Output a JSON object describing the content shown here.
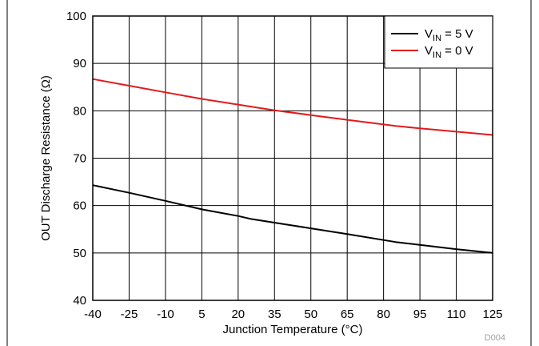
{
  "chart_data": {
    "type": "line",
    "title": "",
    "xlabel": "Junction Temperature (°C)",
    "ylabel": "OUT Discharge Resistance (Ω)",
    "xlim": [
      -40,
      125
    ],
    "ylim": [
      40,
      100
    ],
    "x_ticks": [
      -40,
      -25,
      -10,
      5,
      20,
      35,
      50,
      65,
      80,
      95,
      110,
      125
    ],
    "y_ticks": [
      40,
      50,
      60,
      70,
      80,
      90,
      100
    ],
    "grid": true,
    "legend_position": "top-right",
    "series": [
      {
        "name": "V_IN = 5 V",
        "legend_main": "V",
        "legend_sub": "IN",
        "legend_rest": " = 5 V",
        "color": "#000000",
        "x": [
          -40,
          -25,
          -10,
          5,
          20,
          25,
          35,
          50,
          65,
          85,
          95,
          110,
          125
        ],
        "y": [
          64.3,
          62.7,
          61.0,
          59.2,
          57.8,
          57.2,
          56.4,
          55.2,
          54.0,
          52.3,
          51.7,
          50.8,
          50.0
        ]
      },
      {
        "name": "V_IN = 0 V",
        "legend_main": "V",
        "legend_sub": "IN",
        "legend_rest": " = 0 V",
        "color": "#e31a1c",
        "x": [
          -40,
          -25,
          -10,
          5,
          20,
          25,
          35,
          50,
          65,
          85,
          95,
          110,
          125
        ],
        "y": [
          86.7,
          85.3,
          83.9,
          82.5,
          81.3,
          80.9,
          80.1,
          79.1,
          78.1,
          76.8,
          76.3,
          75.6,
          74.9
        ]
      }
    ],
    "figure_id": "D004"
  }
}
